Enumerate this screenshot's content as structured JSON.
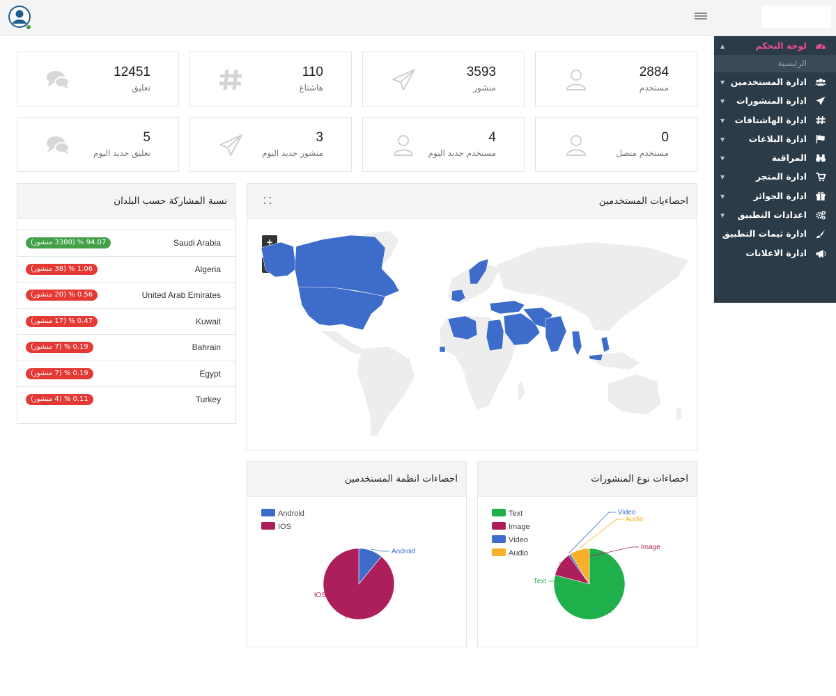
{
  "colors": {
    "sidebar_bg": "#2c3b48",
    "accent_pink": "#e84c8b",
    "map_blue": "#3d6ccb",
    "green": "#43a047",
    "red": "#e53935"
  },
  "topbar": {
    "avatar_icon": "user-circle-icon",
    "menu_icon": "hamburger-icon"
  },
  "sidebar": {
    "active": {
      "label": "لوحة التحكم",
      "icon": "dashboard-icon"
    },
    "sub": {
      "label": "الرئيسية"
    },
    "items": [
      {
        "label": "ادارة المستخدمين",
        "icon": "users-icon"
      },
      {
        "label": "ادارة المنشورات",
        "icon": "paper-plane-icon"
      },
      {
        "label": "ادارة الهاشتاقات",
        "icon": "hashtag-icon"
      },
      {
        "label": "ادارة البلاغات",
        "icon": "flag-icon"
      },
      {
        "label": "المراقبة",
        "icon": "binoculars-icon"
      },
      {
        "label": "ادارة المتجر",
        "icon": "cart-icon"
      },
      {
        "label": "ادارة الجوائز",
        "icon": "gift-icon"
      },
      {
        "label": "اعدادات التطبيق",
        "icon": "cogs-icon"
      },
      {
        "label": "ادارة ثيمات التطبيق",
        "icon": "paint-brush-icon"
      },
      {
        "label": "ادارة الاعلانات",
        "icon": "megaphone-icon"
      }
    ]
  },
  "stats": {
    "row1": [
      {
        "value": "2884",
        "label": "مستخدم",
        "icon": "user-icon"
      },
      {
        "value": "3593",
        "label": "منشور",
        "icon": "paper-plane-icon"
      },
      {
        "value": "110",
        "label": "هاشتاغ",
        "icon": "hashtag-icon"
      },
      {
        "value": "12451",
        "label": "تعليق",
        "icon": "comments-icon"
      }
    ],
    "row2": [
      {
        "value": "0",
        "label": "مستخدم متصل",
        "icon": "user-icon"
      },
      {
        "value": "4",
        "label": "مستخدم جديد اليوم",
        "icon": "user-icon"
      },
      {
        "value": "3",
        "label": "منشور جديد اليوم",
        "icon": "paper-plane-icon"
      },
      {
        "value": "5",
        "label": "تعليق جديد اليوم",
        "icon": "comments-icon"
      }
    ]
  },
  "countries": {
    "title": "نسبة المشاركة حسب البلدان",
    "rows": [
      {
        "name": "Saudi Arabia",
        "badge": "94.07 % (3380 منشور)",
        "status": "green"
      },
      {
        "name": "Algeria",
        "badge": "1.06 % (38 منشور)",
        "status": "red"
      },
      {
        "name": "United Arab Emirates",
        "badge": "0.56 % (20 منشور)",
        "status": "red"
      },
      {
        "name": "Kuwait",
        "badge": "0.47 % (17 منشور)",
        "status": "red"
      },
      {
        "name": "Bahrain",
        "badge": "0.19 % (7 منشور)",
        "status": "red"
      },
      {
        "name": "Egypt",
        "badge": "0.19 % (7 منشور)",
        "status": "red"
      },
      {
        "name": "Turkey",
        "badge": "0.11 % (4 منشور)",
        "status": "red"
      }
    ]
  },
  "map": {
    "title": "احصاءيات المستخدمين",
    "zoom_in": "+",
    "zoom_out": "−",
    "expand_icon": "expand-icon"
  },
  "chart_data": [
    {
      "type": "pie",
      "title": "احصاءات انظمة المستخدمين",
      "categories": [
        "Android",
        "IOS"
      ],
      "values": [
        11,
        89
      ],
      "colors": [
        "#3d6ccb",
        "#ad1f5b"
      ],
      "legend": "top-left"
    },
    {
      "type": "pie",
      "title": "احصاءات نوع المنشورات",
      "categories": [
        "Text",
        "Image",
        "Video",
        "Audio"
      ],
      "values": [
        79,
        11,
        1,
        9
      ],
      "colors": [
        "#20b04b",
        "#ad1f5b",
        "#3d6ccb",
        "#f7b027"
      ],
      "legend": "top-left"
    }
  ]
}
